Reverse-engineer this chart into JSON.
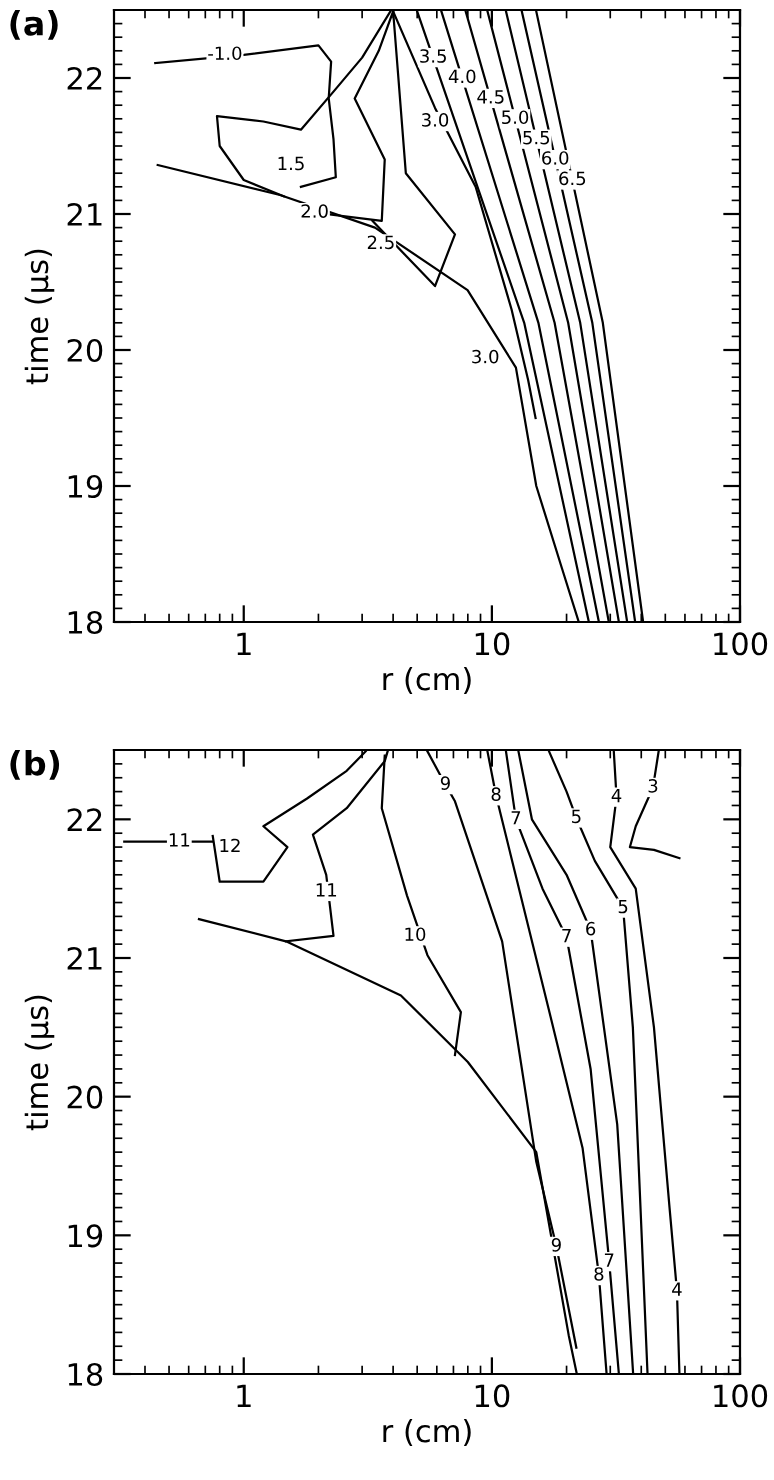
{
  "chart_data": [
    {
      "type": "line",
      "title": "(a)",
      "xlabel": "r (cm)",
      "ylabel": "time (μs)",
      "log": "x",
      "xlim": [
        0.3,
        100
      ],
      "xticks": [
        1,
        10,
        100
      ],
      "ylim": [
        18,
        22.5
      ],
      "yticks": [
        18,
        19,
        20,
        21,
        22
      ],
      "series": [
        {
          "color": "#000000",
          "x": [
            0.45,
            1.4,
            3.38,
            7.98,
            12.5,
            15.1,
            19.2,
            22.4
          ],
          "values": [
            21.36,
            21.14,
            20.9,
            20.44,
            19.87,
            19.0,
            18.39,
            18.0
          ]
        },
        {
          "color": "#000000",
          "x": [
            0.44,
            1.0,
            2.0,
            2.25,
            2.2,
            2.3,
            2.35,
            1.7
          ],
          "values": [
            22.11,
            22.17,
            22.24,
            22.12,
            21.85,
            21.55,
            21.27,
            21.2
          ]
        },
        {
          "color": "#000000",
          "x": [
            1.45,
            1.0,
            0.8,
            0.78,
            1.2,
            1.7,
            2.3,
            3.0,
            3.9
          ],
          "values": [
            21.13,
            21.25,
            21.5,
            21.72,
            21.68,
            21.62,
            21.9,
            22.15,
            22.49
          ]
        },
        {
          "color": "#000000",
          "x": [
            1.93,
            3.6,
            3.7,
            2.8,
            3.5,
            4.0
          ],
          "values": [
            21.01,
            20.95,
            21.4,
            21.85,
            22.2,
            22.49
          ]
        },
        {
          "color": "#000000",
          "x": [
            3.3,
            5.9,
            7.1,
            4.5,
            4.2,
            4.0
          ],
          "values": [
            20.95,
            20.47,
            20.85,
            21.3,
            22.0,
            22.49
          ]
        },
        {
          "color": "#000000",
          "x": [
            4.0,
            5.9,
            8.6,
            12,
            14,
            15
          ],
          "values": [
            22.49,
            21.78,
            21.2,
            20.3,
            19.78,
            19.5
          ]
        },
        {
          "color": "#000000",
          "x": [
            5.0,
            13.5,
            24.6
          ],
          "values": [
            22.49,
            20.2,
            18.0
          ]
        },
        {
          "color": "#000000",
          "x": [
            6.26,
            15.4,
            27.0
          ],
          "values": [
            22.49,
            20.2,
            18.0
          ]
        },
        {
          "color": "#000000",
          "x": [
            7.84,
            17.9,
            29.6
          ],
          "values": [
            22.49,
            20.2,
            18.0
          ]
        },
        {
          "color": "#000000",
          "x": [
            9.6,
            20.3,
            32.5
          ],
          "values": [
            22.49,
            20.2,
            18.0
          ]
        },
        {
          "color": "#000000",
          "x": [
            11.4,
            22.7,
            35.1
          ],
          "values": [
            22.49,
            20.2,
            18.0
          ]
        },
        {
          "color": "#000000",
          "x": [
            13.2,
            25.4,
            37.8
          ],
          "values": [
            22.49,
            20.2,
            18.0
          ]
        },
        {
          "color": "#000000",
          "x": [
            15.1,
            28.0,
            40.7
          ],
          "values": [
            22.49,
            20.2,
            18.0
          ]
        }
      ],
      "annotations": [
        {
          "text": "-1.0",
          "x": 0.84,
          "y": 22.17
        },
        {
          "text": "1.5",
          "x": 1.55,
          "y": 21.36
        },
        {
          "text": "2.0",
          "x": 1.93,
          "y": 21.01
        },
        {
          "text": "2.5",
          "x": 3.57,
          "y": 20.78
        },
        {
          "text": "3.0",
          "x": 9.4,
          "y": 19.94
        },
        {
          "text": "3.0",
          "x": 5.9,
          "y": 21.68
        },
        {
          "text": "3.5",
          "x": 5.8,
          "y": 22.15
        },
        {
          "text": "4.0",
          "x": 7.6,
          "y": 22.0
        },
        {
          "text": "4.5",
          "x": 9.9,
          "y": 21.85
        },
        {
          "text": "5.0",
          "x": 12.4,
          "y": 21.7
        },
        {
          "text": "5.5",
          "x": 15.1,
          "y": 21.55
        },
        {
          "text": "6.0",
          "x": 18.0,
          "y": 21.4
        },
        {
          "text": "6.5",
          "x": 21.1,
          "y": 21.25
        }
      ]
    },
    {
      "type": "line",
      "title": "(b)",
      "xlabel": "r (cm)",
      "ylabel": "time (μs)",
      "log": "x",
      "xlim": [
        0.3,
        100
      ],
      "xticks": [
        1,
        10,
        100
      ],
      "ylim": [
        18,
        22.5
      ],
      "yticks": [
        18,
        19,
        20,
        21,
        22
      ],
      "series": [
        {
          "color": "#000000",
          "x": [
            0.66,
            1.48,
            4.3,
            8.0,
            15.1,
            20.4,
            22.0
          ],
          "values": [
            21.28,
            21.12,
            20.73,
            20.25,
            19.6,
            18.28,
            18.0
          ]
        },
        {
          "color": "#000000",
          "x": [
            0.33,
            0.75
          ],
          "values": [
            21.84,
            21.84
          ]
        },
        {
          "color": "#000000",
          "x": [
            0.75,
            0.8,
            1.2,
            1.5,
            1.2,
            1.8,
            2.6,
            3.1
          ],
          "values": [
            21.88,
            21.55,
            21.55,
            21.8,
            21.95,
            22.15,
            22.35,
            22.49
          ]
        },
        {
          "color": "#000000",
          "x": [
            1.48,
            2.3,
            2.15,
            1.9,
            2.6,
            3.7,
            3.8
          ],
          "values": [
            21.12,
            21.16,
            21.6,
            21.89,
            22.08,
            22.42,
            22.49
          ]
        },
        {
          "color": "#000000",
          "x": [
            7.1,
            7.5,
            5.5,
            4.55,
            3.6,
            3.7
          ],
          "values": [
            20.3,
            20.61,
            21.02,
            21.45,
            22.08,
            22.46
          ]
        },
        {
          "color": "#000000",
          "x": [
            5.5,
            6.5,
            7.1,
            11,
            15.1,
            18.2,
            21.9
          ],
          "values": [
            22.49,
            22.25,
            22.13,
            21.12,
            19.53,
            18.92,
            18.19
          ]
        },
        {
          "color": "#000000",
          "x": [
            9.6,
            10.4,
            16.9,
            23.2,
            27,
            29
          ],
          "values": [
            22.49,
            22.17,
            20.64,
            19.63,
            18.71,
            18.0
          ]
        },
        {
          "color": "#000000",
          "x": [
            11.4,
            12.5,
            16,
            20,
            25,
            29.7,
            32.5
          ],
          "values": [
            22.49,
            22.0,
            21.5,
            21.15,
            20.2,
            18.81,
            18.0
          ]
        },
        {
          "color": "#000000",
          "x": [
            12.8,
            14.5,
            20,
            25,
            32,
            37.1
          ],
          "values": [
            22.49,
            22.0,
            21.6,
            21.2,
            19.8,
            18.0
          ]
        },
        {
          "color": "#000000",
          "x": [
            17,
            20,
            21.9,
            26,
            33.8,
            37,
            42.4
          ],
          "values": [
            22.49,
            22.2,
            22.01,
            21.7,
            21.36,
            20.5,
            18.0
          ]
        },
        {
          "color": "#000000",
          "x": [
            31,
            31.8,
            30,
            38,
            45,
            52,
            55.7,
            57
          ],
          "values": [
            22.49,
            22.16,
            21.8,
            21.5,
            20.5,
            19.2,
            18.6,
            18.0
          ]
        },
        {
          "color": "#000000",
          "x": [
            47,
            44.6,
            38,
            36,
            45,
            57
          ],
          "values": [
            22.49,
            22.23,
            21.95,
            21.8,
            21.78,
            21.72
          ]
        }
      ],
      "annotations": [
        {
          "text": "11",
          "x": 0.55,
          "y": 21.84
        },
        {
          "text": "12",
          "x": 0.88,
          "y": 21.8
        },
        {
          "text": "11",
          "x": 2.15,
          "y": 21.48
        },
        {
          "text": "10",
          "x": 4.9,
          "y": 21.16
        },
        {
          "text": "9",
          "x": 6.5,
          "y": 22.25
        },
        {
          "text": "9",
          "x": 18.2,
          "y": 18.92
        },
        {
          "text": "8",
          "x": 10.4,
          "y": 22.17
        },
        {
          "text": "8",
          "x": 27,
          "y": 18.71
        },
        {
          "text": "7",
          "x": 12.5,
          "y": 22.0
        },
        {
          "text": "7",
          "x": 20,
          "y": 21.15
        },
        {
          "text": "7",
          "x": 29.7,
          "y": 18.81
        },
        {
          "text": "6",
          "x": 25,
          "y": 21.2
        },
        {
          "text": "5",
          "x": 21.9,
          "y": 22.01
        },
        {
          "text": "5",
          "x": 33.8,
          "y": 21.36
        },
        {
          "text": "4",
          "x": 31.8,
          "y": 22.16
        },
        {
          "text": "4",
          "x": 55.7,
          "y": 18.6
        },
        {
          "text": "3",
          "x": 44.6,
          "y": 22.23
        }
      ]
    }
  ]
}
